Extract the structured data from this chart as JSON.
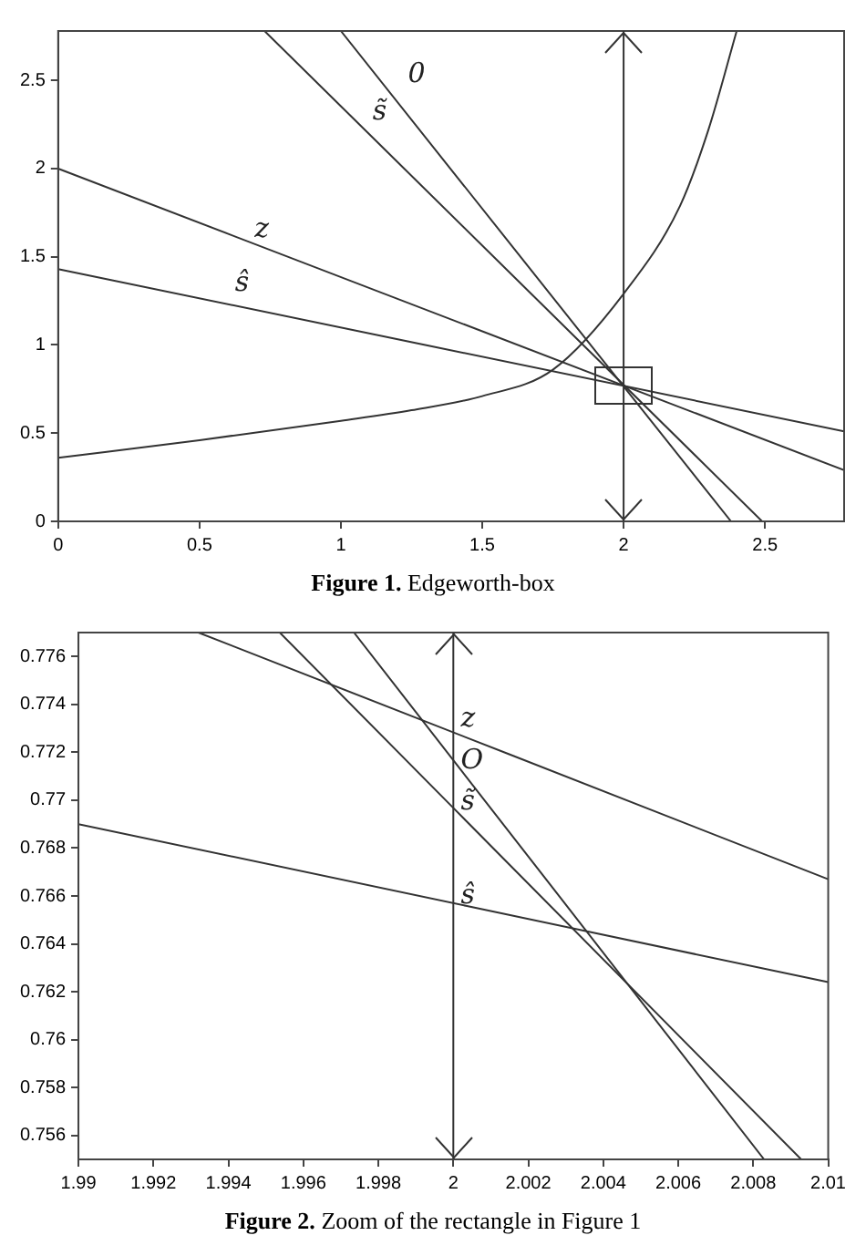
{
  "chart_data": [
    {
      "type": "line",
      "title": "Figure 1. Edgeworth-box",
      "xlim": [
        0,
        2.78
      ],
      "ylim": [
        0,
        2.78
      ],
      "xticks": [
        0,
        0.5,
        1,
        1.5,
        2,
        2.5
      ],
      "yticks": [
        0,
        0.5,
        1,
        1.5,
        2,
        2.5
      ],
      "grid": false,
      "marker": "none",
      "line_style": "solid",
      "series": [
        {
          "color": "#333333",
          "x": [
            0,
            2.78
          ],
          "values": [
            2.0,
            0.29
          ]
        },
        {
          "color": "#333333",
          "x": [
            0,
            2.78
          ],
          "values": [
            1.43,
            0.51
          ]
        },
        {
          "color": "#333333",
          "x": [
            0.73,
            2.49
          ],
          "values": [
            2.78,
            0
          ]
        },
        {
          "color": "#333333",
          "x": [
            1.0,
            2.38
          ],
          "values": [
            2.78,
            0
          ]
        },
        {
          "color": "#333333",
          "x": [
            0,
            0.5,
            1,
            1.25,
            1.5,
            1.75,
            2,
            2.2,
            2.3,
            2.4
          ],
          "values": [
            0.36,
            0.46,
            0.57,
            0.63,
            0.71,
            0.86,
            1.29,
            1.79,
            2.22,
            2.78
          ]
        }
      ],
      "ref_lines": [
        {
          "axis": "x",
          "value": 2,
          "color": "#333333"
        }
      ],
      "annotations": [
        "0",
        "s̃",
        "z",
        "ŝ"
      ]
    },
    {
      "type": "line",
      "title": "Figure 2. Zoom of the rectangle in Figure 1",
      "xlim": [
        1.99,
        2.01
      ],
      "ylim": [
        0.755,
        0.777
      ],
      "xticks": [
        1.99,
        1.992,
        1.994,
        1.996,
        1.998,
        2,
        2.002,
        2.004,
        2.006,
        2.008,
        2.01
      ],
      "yticks": [
        0.756,
        0.758,
        0.76,
        0.762,
        0.764,
        0.766,
        0.768,
        0.77,
        0.772,
        0.774,
        0.776
      ],
      "grid": false,
      "marker": "none",
      "line_style": "solid",
      "series": [
        {
          "color": "#333333",
          "x": [
            1.9932,
            2.01
          ],
          "values": [
            0.777,
            0.7667
          ]
        },
        {
          "color": "#333333",
          "x": [
            1.99,
            2.01
          ],
          "values": [
            0.769,
            0.7624
          ]
        },
        {
          "color": "#333333",
          "x": [
            1.99537,
            2.00928
          ],
          "values": [
            0.777,
            0.755
          ]
        },
        {
          "color": "#333333",
          "x": [
            1.99735,
            2.00829
          ],
          "values": [
            0.777,
            0.755
          ]
        }
      ],
      "ref_lines": [
        {
          "axis": "x",
          "value": 2,
          "color": "#333333"
        }
      ],
      "annotations": [
        "z",
        "O",
        "s̃",
        "ŝ"
      ]
    }
  ]
}
